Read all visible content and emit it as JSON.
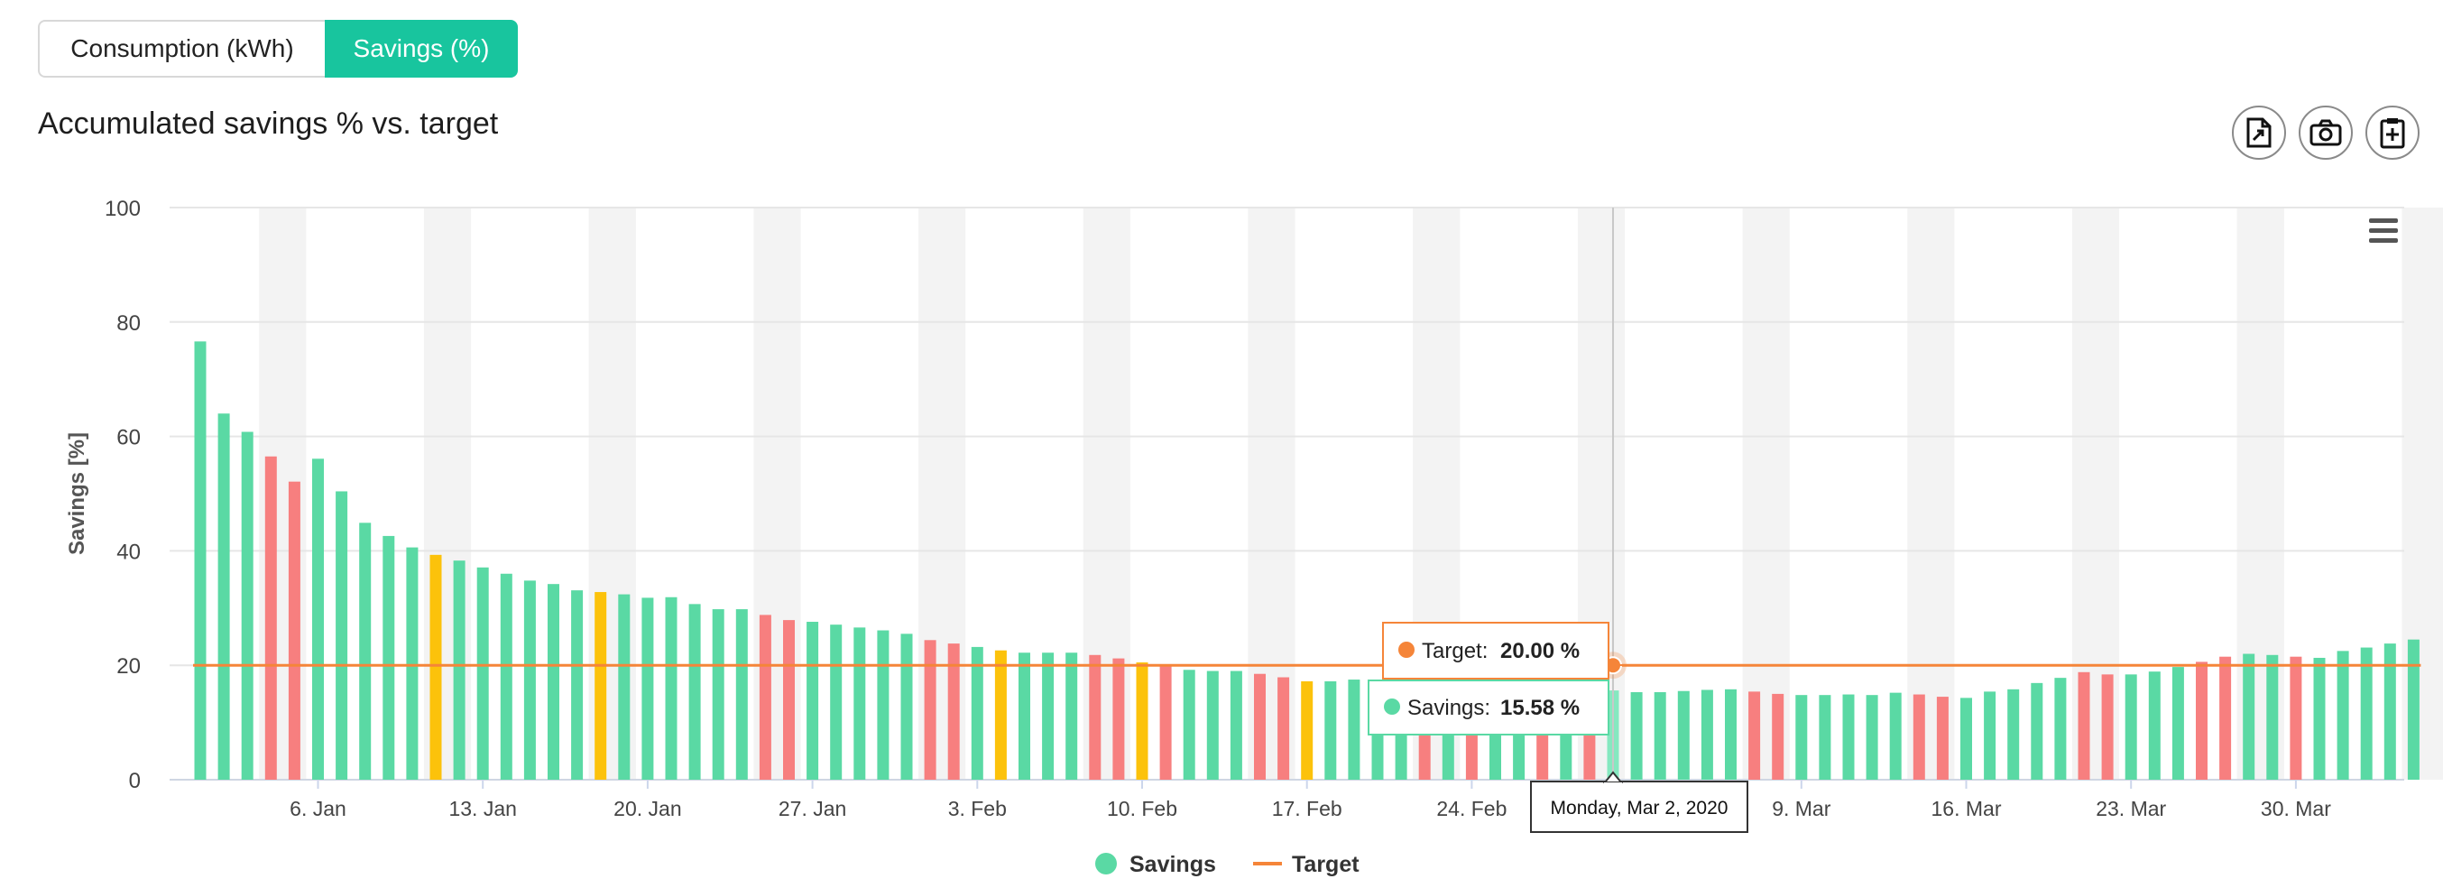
{
  "tabs": [
    {
      "label": "Consumption (kWh)",
      "active": false
    },
    {
      "label": "Savings (%)",
      "active": true
    }
  ],
  "chart_title": "Accumulated savings % vs. target",
  "toolbar": {
    "buttons": [
      {
        "name": "export-file-icon"
      },
      {
        "name": "camera-icon"
      },
      {
        "name": "clipboard-add-icon"
      }
    ],
    "menu_icon": "hamburger-menu-icon"
  },
  "colors": {
    "accent": "#18c59e",
    "savings_above_target": "#5ad9a4",
    "savings_below_target": "#f77f7f",
    "savings_near_target": "#fcc20b",
    "target_line": "#f58539",
    "weekend_band": "#f3f3f3"
  },
  "chart_data": {
    "type": "bar",
    "title": "Accumulated savings % vs. target",
    "ylabel": "Savings [%]",
    "ylim": [
      0,
      100
    ],
    "yticks": [
      0,
      20,
      40,
      60,
      80,
      100
    ],
    "x_tick_labels": [
      "6. Jan",
      "13. Jan",
      "20. Jan",
      "27. Jan",
      "3. Feb",
      "10. Feb",
      "17. Feb",
      "24. Feb",
      "2. Mar",
      "9. Mar",
      "16. Mar",
      "23. Mar",
      "30. Mar"
    ],
    "x_start_date": "2020-01-01",
    "grid": true,
    "legend": {
      "position": "bottom-center",
      "items": [
        "Savings",
        "Target"
      ]
    },
    "series": [
      {
        "name": "Savings",
        "values": [
          76.6,
          64.0,
          60.8,
          56.5,
          52.1,
          56.1,
          50.4,
          44.9,
          42.6,
          40.6,
          39.3,
          38.3,
          37.1,
          36.0,
          34.8,
          34.2,
          33.1,
          32.8,
          32.4,
          31.8,
          31.9,
          30.7,
          29.8,
          29.8,
          28.8,
          27.9,
          27.6,
          27.1,
          26.6,
          26.1,
          25.5,
          24.4,
          23.8,
          23.2,
          22.6,
          22.2,
          22.2,
          22.2,
          21.8,
          21.2,
          20.5,
          20.1,
          19.2,
          19.0,
          19.0,
          18.5,
          17.9,
          17.2,
          17.2,
          17.5,
          17.2,
          16.8,
          16.8,
          16.5,
          16.5,
          16.3,
          15.9,
          15.5,
          15.5,
          15.4,
          15.6,
          15.3,
          15.3,
          15.5,
          15.7,
          15.8,
          15.4,
          15.0,
          14.8,
          14.8,
          14.9,
          14.8,
          15.2,
          14.9,
          14.5,
          14.3,
          15.4,
          15.8,
          16.9,
          17.8,
          18.8,
          18.4,
          18.4,
          18.9,
          19.7,
          20.6,
          21.5,
          22.0,
          21.8,
          21.5,
          21.3,
          22.5,
          23.1,
          23.8,
          24.5
        ],
        "status": [
          "G",
          "G",
          "G",
          "R",
          "R",
          "G",
          "G",
          "G",
          "G",
          "G",
          "Y",
          "G",
          "G",
          "G",
          "G",
          "G",
          "G",
          "Y",
          "G",
          "G",
          "G",
          "G",
          "G",
          "G",
          "R",
          "R",
          "G",
          "G",
          "G",
          "G",
          "G",
          "R",
          "R",
          "G",
          "Y",
          "G",
          "G",
          "G",
          "R",
          "R",
          "Y",
          "R",
          "G",
          "G",
          "G",
          "R",
          "R",
          "Y",
          "G",
          "G",
          "G",
          "G",
          "R",
          "G",
          "R",
          "G",
          "G",
          "R",
          "G",
          "R",
          "H",
          "G",
          "G",
          "G",
          "G",
          "G",
          "R",
          "R",
          "G",
          "G",
          "G",
          "G",
          "G",
          "R",
          "R",
          "G",
          "G",
          "G",
          "G",
          "G",
          "R",
          "R",
          "G",
          "G",
          "G",
          "R",
          "R",
          "G",
          "G",
          "R",
          "G",
          "G",
          "G",
          "G",
          "G"
        ]
      },
      {
        "name": "Target",
        "value": 20
      }
    ],
    "tooltip": {
      "date": "Monday, Mar 2, 2020",
      "target_label": "Target:",
      "target_value": "20.00 %",
      "savings_label": "Savings:",
      "savings_value": "15.58 %",
      "index": 60
    }
  }
}
